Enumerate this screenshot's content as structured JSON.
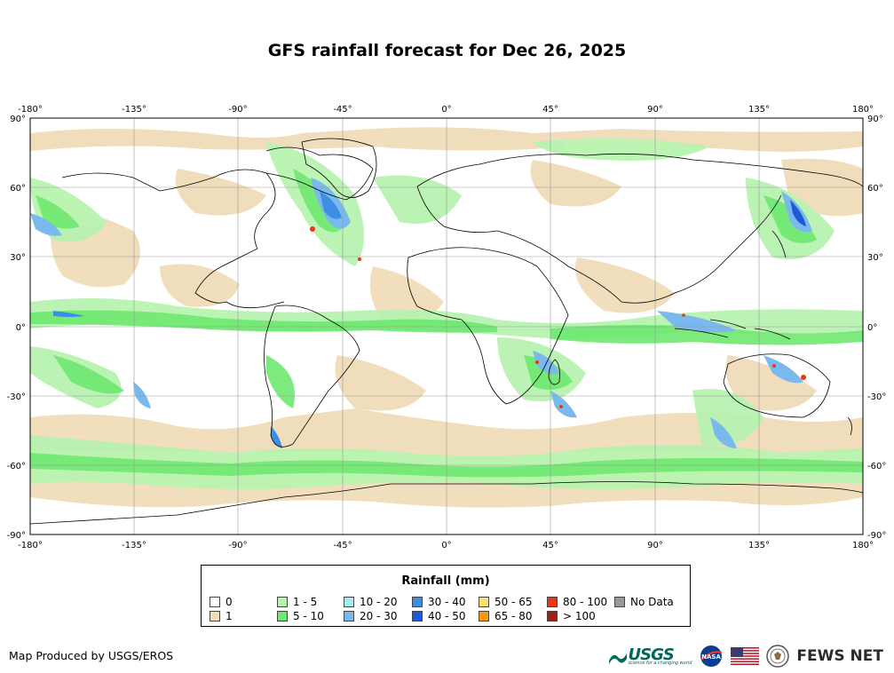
{
  "title": "GFS rainfall forecast for Dec 26, 2025",
  "axes": {
    "lon_labels": [
      "-180°",
      "-135°",
      "-90°",
      "-45°",
      "0°",
      "45°",
      "90°",
      "135°",
      "180°"
    ],
    "lat_labels": [
      "90°",
      "60°",
      "30°",
      "0°",
      "-30°",
      "-60°",
      "-90°"
    ]
  },
  "legend": {
    "title": "Rainfall (mm)",
    "items": [
      {
        "label": "0",
        "color": "#ffffff"
      },
      {
        "label": "1",
        "color": "#f0dcb8"
      },
      {
        "label": "1 - 5",
        "color": "#b8f3b0"
      },
      {
        "label": "5 - 10",
        "color": "#6ee870"
      },
      {
        "label": "10 - 20",
        "color": "#a6ecee"
      },
      {
        "label": "20 - 30",
        "color": "#79b9ee"
      },
      {
        "label": "30 - 40",
        "color": "#3d8fe4"
      },
      {
        "label": "40 - 50",
        "color": "#1c5ad6"
      },
      {
        "label": "50 - 65",
        "color": "#f8de74"
      },
      {
        "label": "65 - 80",
        "color": "#f59a10"
      },
      {
        "label": "80 - 100",
        "color": "#ee3612"
      },
      {
        "label": "> 100",
        "color": "#a01f16"
      },
      {
        "label": "No Data",
        "color": "#999999"
      }
    ]
  },
  "credit": "Map Produced by USGS/EROS",
  "logos": {
    "usgs": "USGS",
    "usgs_tagline": "science for a changing world",
    "nasa": "NASA",
    "fews": "FEWS NET"
  }
}
